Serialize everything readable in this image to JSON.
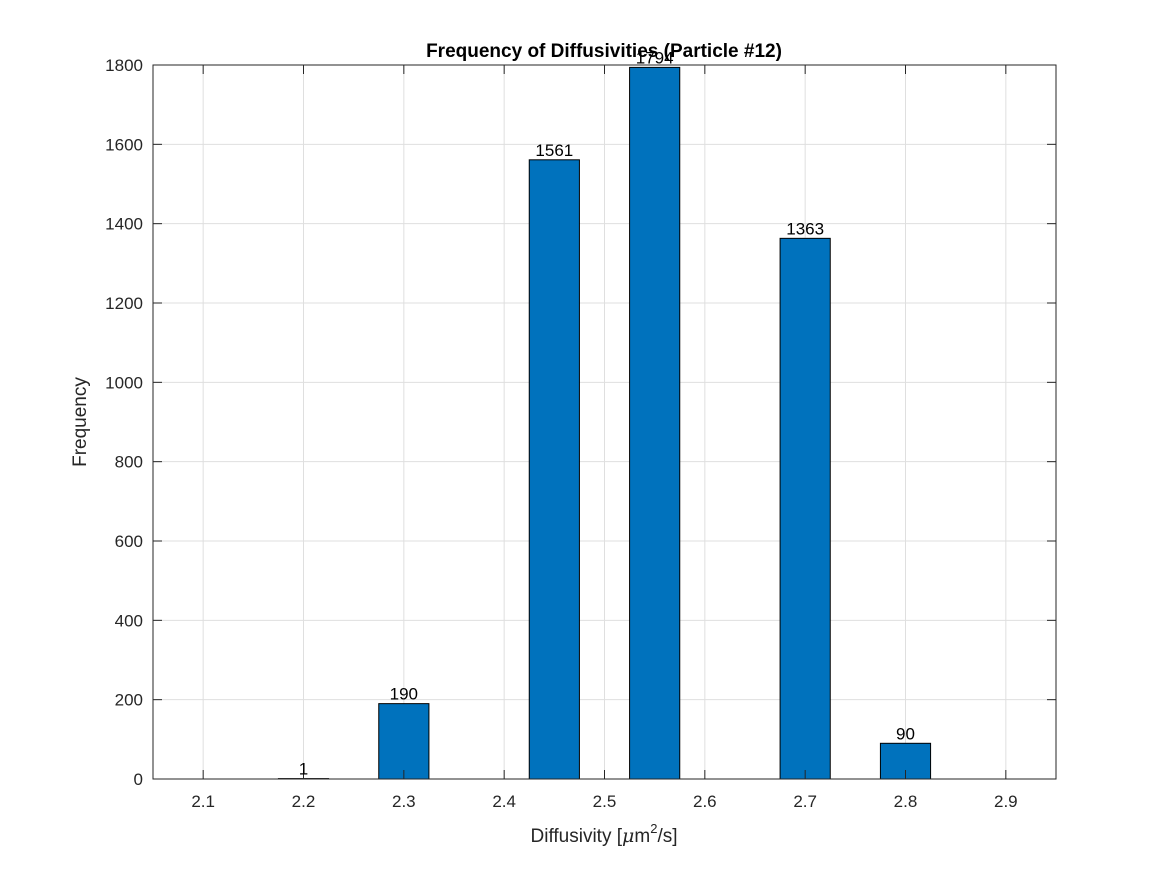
{
  "chart_data": {
    "type": "bar",
    "title": "Frequency of Diffusivities (Particle #12)",
    "xlabel": {
      "prefix": "Diffusivity [",
      "mu": "μ",
      "unit": "m",
      "exponent": "2",
      "suffix": "/s]"
    },
    "ylabel": "Frequency",
    "categories": [
      2.2,
      2.3,
      2.45,
      2.55,
      2.7,
      2.8
    ],
    "values": [
      1,
      190,
      1561,
      1794,
      1363,
      90
    ],
    "data_labels": [
      "1",
      "190",
      "1561",
      "1794",
      "1363",
      "90"
    ],
    "bar_width": 0.05,
    "xlim": [
      2.05,
      2.95
    ],
    "ylim": [
      0,
      1800
    ],
    "x_ticks": [
      "2.1",
      "2.2",
      "2.3",
      "2.4",
      "2.5",
      "2.6",
      "2.7",
      "2.8",
      "2.9"
    ],
    "y_ticks": [
      "0",
      "200",
      "400",
      "600",
      "800",
      "1000",
      "1200",
      "1400",
      "1600",
      "1800"
    ],
    "grid": true,
    "bar_color": "#0072BD"
  }
}
